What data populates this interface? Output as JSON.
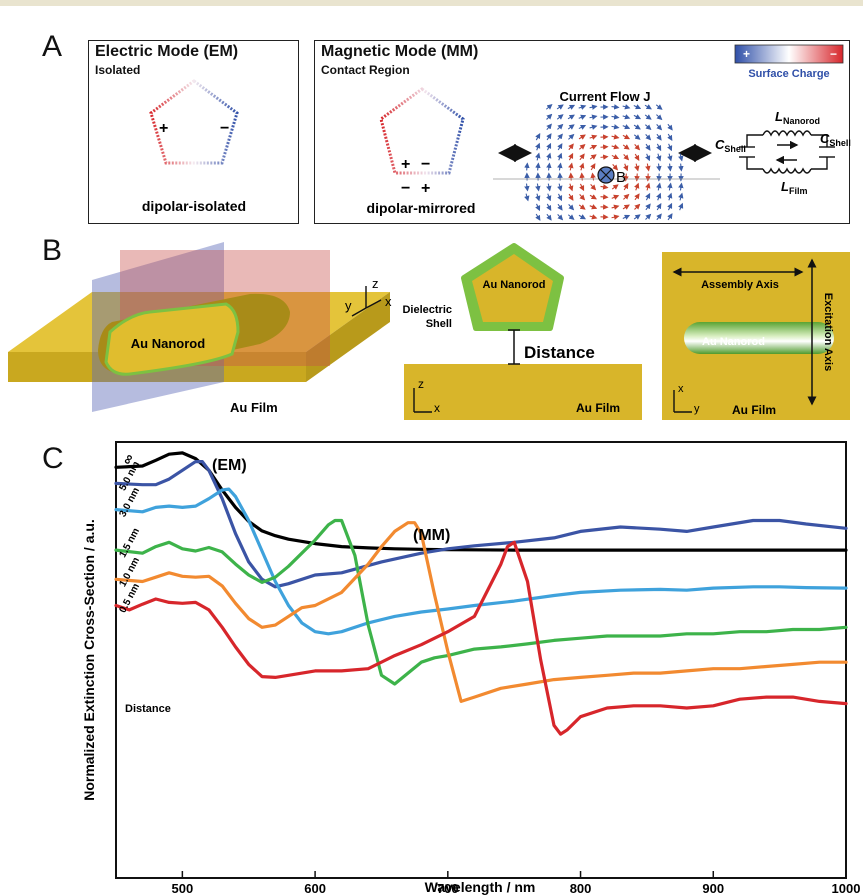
{
  "panel_a": {
    "letter": "A",
    "em_title": "Electric Mode (EM)",
    "em_subtitle": "Isolated",
    "em_plus": "+",
    "em_minus": "−",
    "em_caption": "dipolar-isolated",
    "mm_title": "Magnetic Mode (MM)",
    "mm_subtitle": "Contact Region",
    "mm_caption": "dipolar-mirrored",
    "mm_top_plus": "+",
    "mm_top_minus": "−",
    "mm_bot_minus": "−",
    "mm_bot_plus": "+",
    "current_title": "Current Flow J",
    "b_label": "B",
    "colorbar_plus": "+",
    "colorbar_minus": "−",
    "colorbar_label": "Surface Charge",
    "circuit": {
      "l_nanorod": "L",
      "l_nanorod_sub": "Nanorod",
      "c_shell_left": "C",
      "c_shell_left_sub": "Shell",
      "c_shell_right": "C",
      "c_shell_right_sub": "Shell",
      "l_film": "L",
      "l_film_sub": "Film"
    }
  },
  "panel_b": {
    "letter": "B",
    "scene_rod_label": "Au Nanorod",
    "scene_film_label": "Au Film",
    "axis_z": "z",
    "axis_y": "y",
    "axis_x": "x",
    "cross_rod_label": "Au Nanorod",
    "dielectric_label_1": "Dielectric",
    "dielectric_label_2": "Shell",
    "distance_label": "Distance",
    "cross_film_label": "Au Film",
    "cross_axis_z": "z",
    "cross_axis_x": "x",
    "top_assembly_label": "Assembly Axis",
    "top_excitation_label": "Excitation Axis",
    "top_rod_label": "Au Nanorod",
    "top_film_label": "Au Film",
    "top_axis_x": "x",
    "top_axis_y": "y"
  },
  "panel_c": {
    "letter": "C",
    "em_label": "(EM)",
    "mm_label": "(MM)",
    "distance_label": "Distance"
  },
  "colors": {
    "gold": "#d8b52a",
    "shell_green": "#7dc142",
    "charge_pos": "#d7262b",
    "charge_neg": "#2f4fa8",
    "series_inf": "#000000",
    "series_5": "#3b54a5",
    "series_3": "#3fa2dc",
    "series_15": "#3db34a",
    "series_1": "#f28a30",
    "series_05": "#d7262b"
  },
  "chart_data": {
    "type": "line",
    "title": "",
    "xlabel": "Wavelength / nm",
    "ylabel": "Normalized Extinction Cross-Section / a.u.",
    "xlim": [
      450,
      1000
    ],
    "xticks": [
      500,
      600,
      700,
      800,
      900,
      1000
    ],
    "grid": false,
    "series": [
      {
        "name": "∞",
        "color": "#000000",
        "x": [
          450,
          470,
          480,
          490,
          500,
          510,
          520,
          530,
          540,
          550,
          560,
          570,
          580,
          600,
          620,
          640,
          660,
          680,
          700,
          750,
          800,
          850,
          900,
          950,
          1000
        ],
        "y": [
          0.942,
          0.945,
          0.958,
          0.972,
          0.975,
          0.962,
          0.935,
          0.89,
          0.85,
          0.818,
          0.796,
          0.785,
          0.777,
          0.767,
          0.76,
          0.757,
          0.755,
          0.754,
          0.753,
          0.752,
          0.752,
          0.752,
          0.752,
          0.752,
          0.752
        ]
      },
      {
        "name": "5.0 nm",
        "color": "#3b54a5",
        "x": [
          450,
          470,
          480,
          490,
          500,
          510,
          515,
          520,
          530,
          540,
          550,
          560,
          570,
          580,
          600,
          620,
          650,
          680,
          700,
          720,
          750,
          780,
          800,
          830,
          860,
          880,
          900,
          930,
          950,
          970,
          1000
        ],
        "y": [
          0.905,
          0.902,
          0.902,
          0.915,
          0.935,
          0.955,
          0.955,
          0.935,
          0.87,
          0.79,
          0.725,
          0.685,
          0.668,
          0.675,
          0.695,
          0.7,
          0.725,
          0.745,
          0.755,
          0.762,
          0.77,
          0.78,
          0.795,
          0.805,
          0.8,
          0.795,
          0.805,
          0.82,
          0.82,
          0.812,
          0.802
        ]
      },
      {
        "name": "3.0 nm",
        "color": "#3fa2dc",
        "x": [
          450,
          470,
          480,
          490,
          500,
          510,
          520,
          530,
          535,
          540,
          550,
          560,
          570,
          580,
          590,
          600,
          610,
          620,
          640,
          660,
          680,
          700,
          720,
          750,
          780,
          800,
          830,
          860,
          880,
          900,
          930,
          950,
          970,
          1000
        ],
        "y": [
          0.845,
          0.84,
          0.85,
          0.853,
          0.85,
          0.853,
          0.87,
          0.89,
          0.892,
          0.875,
          0.82,
          0.75,
          0.68,
          0.625,
          0.585,
          0.565,
          0.56,
          0.565,
          0.585,
          0.6,
          0.61,
          0.617,
          0.625,
          0.635,
          0.648,
          0.655,
          0.66,
          0.662,
          0.66,
          0.665,
          0.668,
          0.668,
          0.666,
          0.665
        ]
      },
      {
        "name": "1.5 nm",
        "color": "#3db34a",
        "x": [
          450,
          470,
          480,
          490,
          500,
          510,
          520,
          530,
          540,
          550,
          560,
          570,
          580,
          590,
          600,
          610,
          615,
          620,
          630,
          640,
          650,
          660,
          670,
          680,
          690,
          700,
          720,
          740,
          760,
          780,
          800,
          820,
          840,
          860,
          880,
          900,
          920,
          940,
          960,
          980,
          1000
        ],
        "y": [
          0.752,
          0.745,
          0.76,
          0.77,
          0.755,
          0.75,
          0.758,
          0.748,
          0.72,
          0.695,
          0.678,
          0.69,
          0.715,
          0.745,
          0.775,
          0.81,
          0.82,
          0.82,
          0.74,
          0.58,
          0.465,
          0.445,
          0.47,
          0.495,
          0.505,
          0.51,
          0.525,
          0.53,
          0.537,
          0.545,
          0.55,
          0.555,
          0.555,
          0.555,
          0.56,
          0.56,
          0.565,
          0.565,
          0.57,
          0.57,
          0.575
        ]
      },
      {
        "name": "1.0 nm",
        "color": "#f28a30",
        "x": [
          450,
          470,
          480,
          490,
          500,
          510,
          520,
          530,
          540,
          550,
          560,
          570,
          580,
          590,
          600,
          620,
          640,
          650,
          660,
          670,
          675,
          680,
          690,
          700,
          710,
          720,
          740,
          760,
          780,
          800,
          820,
          840,
          860,
          880,
          900,
          920,
          940,
          960,
          980,
          1000
        ],
        "y": [
          0.685,
          0.68,
          0.69,
          0.7,
          0.692,
          0.69,
          0.692,
          0.67,
          0.63,
          0.595,
          0.575,
          0.58,
          0.6,
          0.62,
          0.625,
          0.655,
          0.72,
          0.76,
          0.795,
          0.815,
          0.815,
          0.79,
          0.65,
          0.52,
          0.405,
          0.415,
          0.435,
          0.445,
          0.455,
          0.46,
          0.465,
          0.47,
          0.47,
          0.475,
          0.48,
          0.48,
          0.485,
          0.49,
          0.495,
          0.495
        ]
      },
      {
        "name": "0.5 nm",
        "color": "#d7262b",
        "x": [
          450,
          460,
          470,
          480,
          490,
          500,
          510,
          520,
          530,
          540,
          550,
          560,
          570,
          580,
          600,
          620,
          640,
          660,
          680,
          700,
          720,
          740,
          745,
          750,
          760,
          770,
          780,
          785,
          790,
          800,
          820,
          840,
          860,
          880,
          900,
          920,
          940,
          960,
          980,
          1000
        ],
        "y": [
          0.625,
          0.615,
          0.628,
          0.64,
          0.632,
          0.63,
          0.632,
          0.615,
          0.575,
          0.53,
          0.49,
          0.462,
          0.46,
          0.465,
          0.475,
          0.475,
          0.48,
          0.51,
          0.535,
          0.565,
          0.6,
          0.72,
          0.76,
          0.77,
          0.68,
          0.5,
          0.35,
          0.33,
          0.34,
          0.37,
          0.39,
          0.395,
          0.395,
          0.39,
          0.395,
          0.41,
          0.415,
          0.415,
          0.405,
          0.4
        ]
      }
    ]
  }
}
